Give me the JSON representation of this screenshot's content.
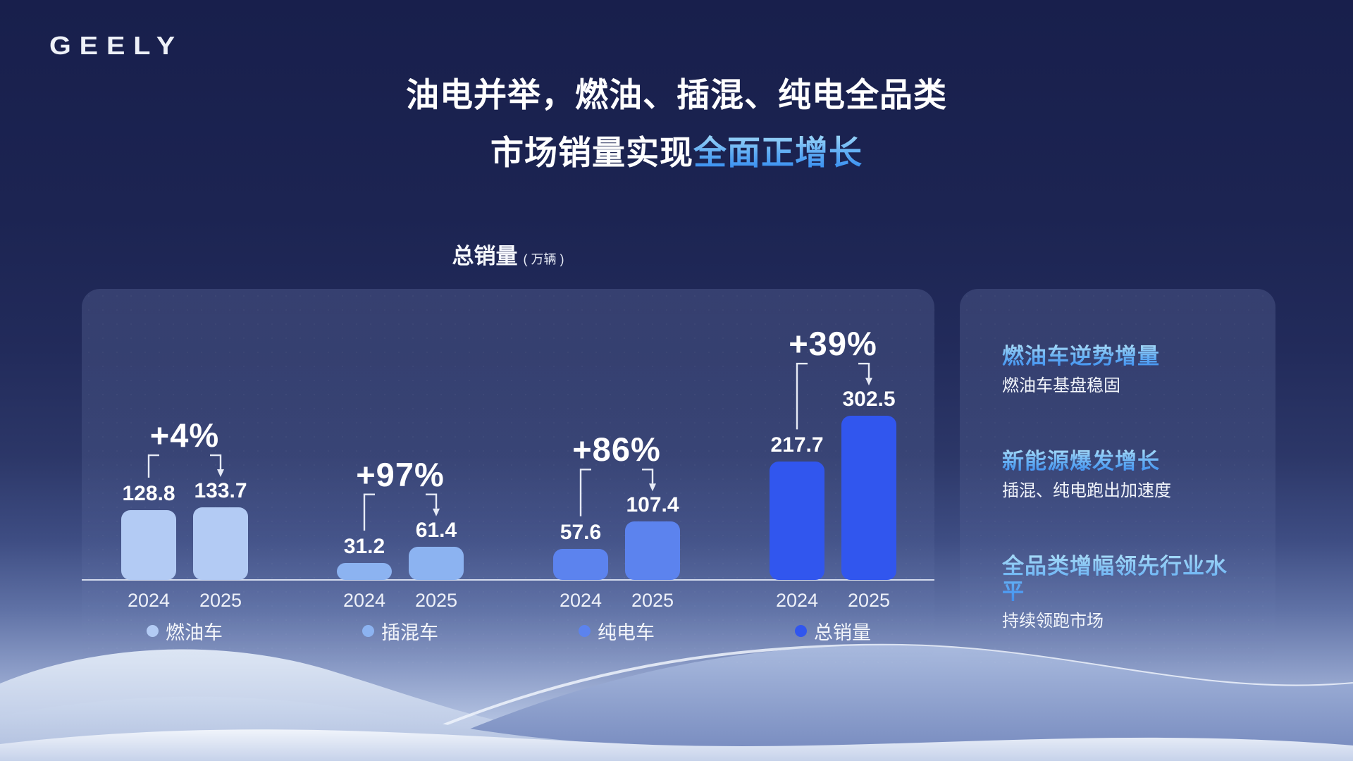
{
  "brand": {
    "logo_text": "GEELY"
  },
  "title": {
    "line1": "油电并举，燃油、插混、纯电全品类",
    "line2_prefix": "市场销量实现",
    "line2_highlight": "全面正增长"
  },
  "chart_header": {
    "title": "总销量",
    "unit": "( 万辆 )"
  },
  "chart_data": {
    "type": "bar",
    "title": "总销量（万辆）",
    "ylabel": "销量（万辆）",
    "years": [
      "2024",
      "2025"
    ],
    "ylim": [
      0,
      320
    ],
    "grid": false,
    "legend_position": "bottom",
    "groups": [
      {
        "label": "燃油车",
        "color": "#b3cbf4",
        "pct": "+4%",
        "values": [
          128.8,
          133.7
        ]
      },
      {
        "label": "插混车",
        "color": "#8cb3f1",
        "pct": "+97%",
        "values": [
          31.2,
          61.4
        ]
      },
      {
        "label": "纯电车",
        "color": "#5c83ee",
        "pct": "+86%",
        "values": [
          57.6,
          107.4
        ]
      },
      {
        "label": "总销量",
        "color": "#3156ee",
        "pct": "+39%",
        "values": [
          217.7,
          302.5
        ]
      }
    ]
  },
  "insights": [
    {
      "heading": "燃油车逆势增量",
      "subtext": "燃油车基盘稳固"
    },
    {
      "heading": "新能源爆发增长",
      "subtext": "插混、纯电跑出加速度"
    },
    {
      "heading": "全品类增幅领先行业水平",
      "subtext": "持续领跑市场"
    }
  ],
  "colors": {
    "background_top": "#1a2150",
    "axis_line": "#e2e8f6",
    "text_primary": "#ffffff",
    "highlight_gradient_start": "#9ed7f8",
    "highlight_gradient_end": "#338af0",
    "dune_light": "#e8eef9",
    "dune_mid": "#b4c3e2",
    "dune_deep": "#7e94c6"
  }
}
